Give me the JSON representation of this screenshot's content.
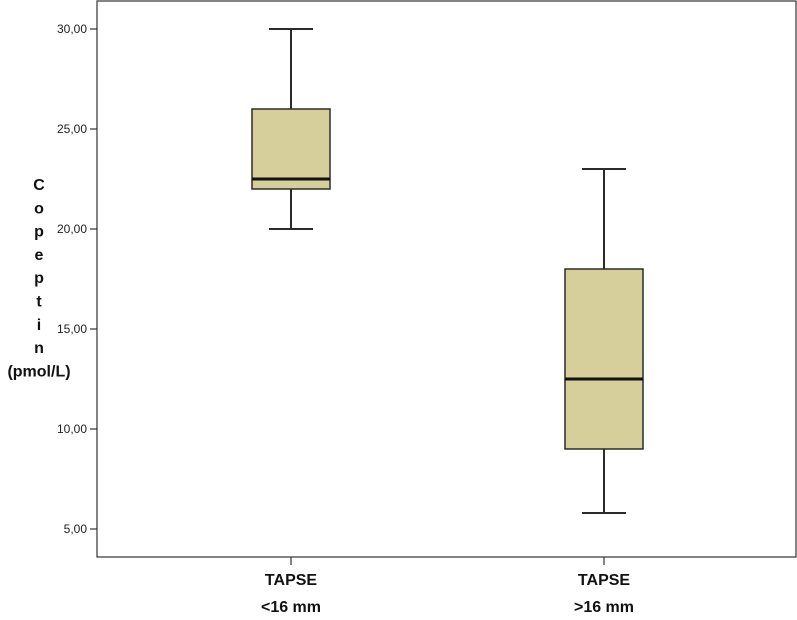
{
  "chart_data": {
    "type": "box",
    "title": "",
    "xlabel": "",
    "ylabel": "Copeptin (pmol/L)",
    "ylabel_lines": [
      "C",
      "o",
      "p",
      "e",
      "p",
      "t",
      "i",
      "n",
      "(pmol/L)"
    ],
    "ylim": [
      5,
      30
    ],
    "yticks": [
      5,
      10,
      15,
      20,
      25,
      30
    ],
    "ytick_labels": [
      "5,00",
      "10,00",
      "15,00",
      "20,00",
      "25,00",
      "30,00"
    ],
    "grid": false,
    "legend": "none",
    "categories": [
      {
        "lines": [
          "TAPSE",
          "<16 mm"
        ]
      },
      {
        "lines": [
          "TAPSE",
          ">16 mm"
        ]
      }
    ],
    "boxes": [
      {
        "min": 20.0,
        "q1": 22.0,
        "median": 22.5,
        "q3": 26.0,
        "max": 30.0
      },
      {
        "min": 5.8,
        "q1": 9.0,
        "median": 12.5,
        "q3": 18.0,
        "max": 23.0
      }
    ],
    "colors": {
      "box_fill": "#d6cf9c",
      "box_stroke": "#2b2b2b",
      "axis": "#333333"
    }
  }
}
